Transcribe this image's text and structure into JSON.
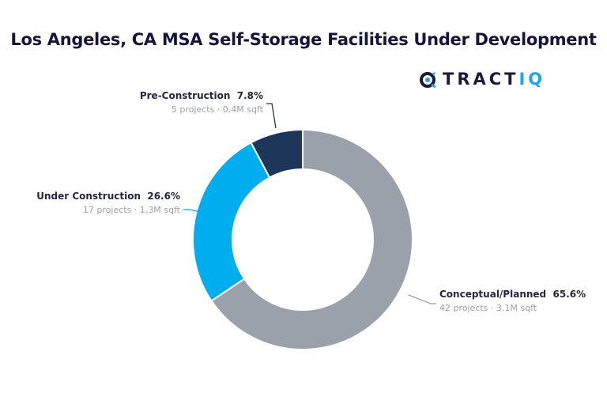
{
  "chart_data": {
    "type": "pie",
    "variant": "donut",
    "title": "Los Angeles, CA MSA Self-Storage Facilities Under Development",
    "logo_text": "TRACTIQ",
    "slices": [
      {
        "label": "Conceptual/Planned",
        "percent_label": "65.6%",
        "value": 65.6,
        "detail": "42 projects · 3.1M sqft",
        "color": "#9ba1ab"
      },
      {
        "label": "Under Construction",
        "percent_label": "26.6%",
        "value": 26.6,
        "detail": "17 projects · 1.3M sqft",
        "color": "#00adef"
      },
      {
        "label": "Pre-Construction",
        "percent_label": "7.8%",
        "value": 7.8,
        "detail": "5 projects · 0.4M sqft",
        "color": "#1d3659"
      }
    ]
  }
}
